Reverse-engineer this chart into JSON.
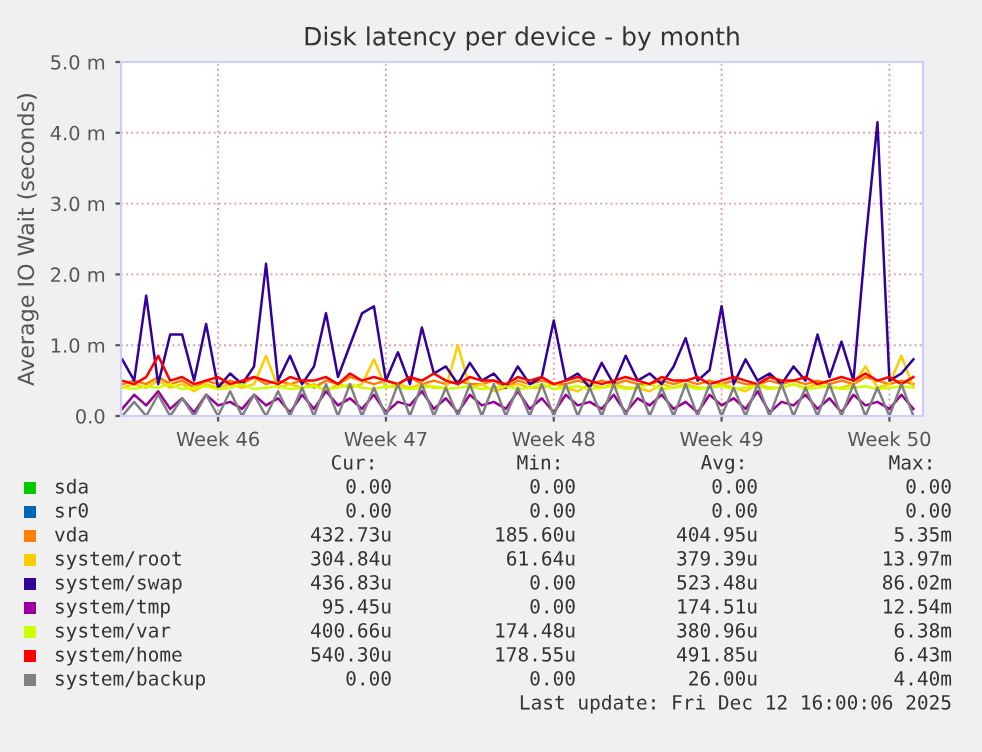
{
  "chart_data": {
    "type": "line",
    "title": "Disk latency per device - by month",
    "ylabel": "Average IO Wait (seconds)",
    "categories": [
      null,
      null,
      null,
      null,
      null,
      null,
      null,
      null,
      "Week 46",
      null,
      null,
      null,
      null,
      null,
      null,
      null,
      null,
      null,
      null,
      null,
      null,
      null,
      "Week 47",
      null,
      null,
      null,
      null,
      null,
      null,
      null,
      null,
      null,
      null,
      null,
      null,
      null,
      "Week 48",
      null,
      null,
      null,
      null,
      null,
      null,
      null,
      null,
      null,
      null,
      null,
      null,
      null,
      "Week 49",
      null,
      null,
      null,
      null,
      null,
      null,
      null,
      null,
      null,
      null,
      null,
      null,
      null,
      "Week 50",
      null,
      null
    ],
    "ylim": [
      0,
      5
    ],
    "yticks": [
      {
        "value": 0,
        "label": "0.0"
      },
      {
        "value": 1,
        "label": "1.0 m"
      },
      {
        "value": 2,
        "label": "2.0 m"
      },
      {
        "value": 3,
        "label": "3.0 m"
      },
      {
        "value": 4,
        "label": "4.0 m"
      },
      {
        "value": 5,
        "label": "5.0 m"
      }
    ],
    "grid": true,
    "legend": "bottom",
    "marker": "none",
    "line_style": "solid",
    "series": [
      {
        "name": "sda",
        "color": "#00cc00",
        "values": [
          null,
          null,
          null,
          null,
          null,
          null,
          null,
          null,
          null,
          null,
          null,
          null,
          null,
          null,
          null,
          null,
          null,
          null,
          null,
          null,
          null,
          null,
          null,
          null,
          null,
          null,
          null,
          null,
          null,
          null,
          null,
          null,
          null,
          null,
          null,
          null,
          null,
          null,
          null,
          null,
          null,
          null,
          null,
          null,
          null,
          null,
          null,
          null,
          null,
          null,
          null,
          null,
          null,
          null,
          null,
          null,
          null,
          null,
          null,
          null,
          null,
          null,
          null,
          null,
          null,
          null,
          null
        ]
      },
      {
        "name": "sr0",
        "color": "#0066b3",
        "values": [
          null,
          null,
          null,
          null,
          null,
          null,
          null,
          null,
          null,
          null,
          null,
          null,
          null,
          null,
          null,
          null,
          null,
          null,
          null,
          null,
          null,
          null,
          null,
          null,
          null,
          null,
          null,
          null,
          null,
          null,
          null,
          null,
          null,
          null,
          null,
          null,
          null,
          null,
          null,
          null,
          null,
          null,
          null,
          null,
          null,
          null,
          null,
          null,
          null,
          null,
          null,
          null,
          null,
          null,
          null,
          null,
          null,
          null,
          null,
          null,
          null,
          null,
          null,
          null,
          null,
          null,
          null
        ]
      },
      {
        "name": "vda",
        "color": "#ff8000",
        "values": [
          0.45,
          0.5,
          0.45,
          0.55,
          0.45,
          0.5,
          0.4,
          0.5,
          0.45,
          0.5,
          0.45,
          0.55,
          0.45,
          0.5,
          0.45,
          0.5,
          0.4,
          0.5,
          0.45,
          0.55,
          0.5,
          0.45,
          0.5,
          0.45,
          0.55,
          0.45,
          0.5,
          0.45,
          0.5,
          0.45,
          0.45,
          0.5,
          0.4,
          0.5,
          0.45,
          0.5,
          0.45,
          0.45,
          0.5,
          0.45,
          0.5,
          0.45,
          0.5,
          0.45,
          0.45,
          0.5,
          0.45,
          0.5,
          0.45,
          0.5,
          0.45,
          0.5,
          0.45,
          0.45,
          0.5,
          0.45,
          0.5,
          0.45,
          0.5,
          0.45,
          0.5,
          0.45,
          0.55,
          0.5,
          0.45,
          0.5,
          0.45
        ]
      },
      {
        "name": "system/root",
        "color": "#ffcc00",
        "values": [
          0.4,
          0.45,
          0.4,
          0.5,
          0.4,
          0.45,
          0.35,
          0.45,
          0.4,
          0.45,
          0.4,
          0.45,
          0.85,
          0.4,
          0.45,
          0.4,
          0.45,
          0.35,
          0.45,
          0.4,
          0.45,
          0.8,
          0.4,
          0.45,
          0.4,
          0.45,
          0.4,
          0.4,
          1.0,
          0.4,
          0.45,
          0.35,
          0.4,
          0.45,
          0.4,
          0.4,
          0.45,
          0.4,
          0.35,
          0.45,
          0.4,
          0.45,
          0.4,
          0.4,
          0.35,
          0.45,
          0.4,
          0.45,
          0.4,
          0.4,
          0.45,
          0.4,
          0.35,
          0.45,
          0.4,
          0.4,
          0.45,
          0.4,
          0.45,
          0.4,
          0.4,
          0.45,
          0.7,
          0.4,
          0.45,
          0.85,
          0.4
        ]
      },
      {
        "name": "system/swap",
        "color": "#330099",
        "values": [
          0.8,
          0.5,
          1.7,
          0.45,
          1.15,
          1.15,
          0.5,
          1.3,
          0.4,
          0.6,
          0.45,
          0.7,
          2.15,
          0.5,
          0.85,
          0.45,
          0.7,
          1.45,
          0.55,
          1.0,
          1.45,
          1.55,
          0.5,
          0.9,
          0.45,
          1.25,
          0.6,
          0.7,
          0.45,
          0.75,
          0.5,
          0.6,
          0.4,
          0.7,
          0.45,
          0.55,
          1.35,
          0.5,
          0.6,
          0.4,
          0.75,
          0.45,
          0.85,
          0.5,
          0.6,
          0.45,
          0.7,
          1.1,
          0.5,
          0.65,
          1.55,
          0.45,
          0.8,
          0.5,
          0.6,
          0.45,
          0.7,
          0.5,
          1.15,
          0.55,
          1.05,
          0.5,
          2.45,
          4.15,
          0.5,
          0.6,
          0.8
        ]
      },
      {
        "name": "system/tmp",
        "color": "#990099",
        "values": [
          0.1,
          0.3,
          0.15,
          0.35,
          0.1,
          0.25,
          0.05,
          0.3,
          0.15,
          0.2,
          0.1,
          0.3,
          0.15,
          0.25,
          0.05,
          0.3,
          0.1,
          0.35,
          0.15,
          0.25,
          0.1,
          0.3,
          0.05,
          0.2,
          0.15,
          0.35,
          0.1,
          0.25,
          0.05,
          0.3,
          0.15,
          0.2,
          0.1,
          0.35,
          0.1,
          0.25,
          0.05,
          0.3,
          0.15,
          0.2,
          0.1,
          0.3,
          0.05,
          0.25,
          0.15,
          0.3,
          0.1,
          0.2,
          0.05,
          0.3,
          0.15,
          0.25,
          0.1,
          0.35,
          0.05,
          0.2,
          0.15,
          0.3,
          0.1,
          0.25,
          0.05,
          0.3,
          0.15,
          0.2,
          0.1,
          0.3,
          0.1
        ]
      },
      {
        "name": "system/var",
        "color": "#ccff00",
        "values": [
          0.4,
          0.38,
          0.42,
          0.4,
          0.45,
          0.38,
          0.4,
          0.42,
          0.38,
          0.4,
          0.45,
          0.38,
          0.4,
          0.42,
          0.38,
          0.4,
          0.42,
          0.38,
          0.4,
          0.45,
          0.4,
          0.38,
          0.42,
          0.4,
          0.38,
          0.4,
          0.42,
          0.38,
          0.4,
          0.42,
          0.38,
          0.4,
          0.42,
          0.38,
          0.4,
          0.45,
          0.38,
          0.4,
          0.42,
          0.38,
          0.4,
          0.42,
          0.38,
          0.4,
          0.45,
          0.38,
          0.4,
          0.42,
          0.38,
          0.4,
          0.42,
          0.38,
          0.4,
          0.42,
          0.38,
          0.4,
          0.45,
          0.38,
          0.4,
          0.42,
          0.38,
          0.4,
          0.42,
          0.38,
          0.4,
          0.42,
          0.4
        ]
      },
      {
        "name": "system/home",
        "color": "#ff0000",
        "values": [
          0.5,
          0.45,
          0.55,
          0.85,
          0.5,
          0.55,
          0.45,
          0.5,
          0.55,
          0.45,
          0.5,
          0.55,
          0.5,
          0.45,
          0.55,
          0.5,
          0.5,
          0.55,
          0.45,
          0.6,
          0.5,
          0.55,
          0.5,
          0.45,
          0.55,
          0.5,
          0.6,
          0.5,
          0.45,
          0.55,
          0.5,
          0.5,
          0.45,
          0.55,
          0.5,
          0.55,
          0.45,
          0.5,
          0.55,
          0.5,
          0.45,
          0.5,
          0.55,
          0.5,
          0.45,
          0.55,
          0.5,
          0.5,
          0.55,
          0.45,
          0.5,
          0.55,
          0.5,
          0.45,
          0.55,
          0.5,
          0.5,
          0.55,
          0.45,
          0.5,
          0.55,
          0.5,
          0.6,
          0.5,
          0.55,
          0.45,
          0.55
        ]
      },
      {
        "name": "system/backup",
        "color": "#808080",
        "values": [
          0,
          0.2,
          0,
          0.3,
          0,
          0.25,
          0,
          0.3,
          0,
          0.35,
          0,
          0.3,
          0,
          0.35,
          0,
          0.4,
          0,
          0.45,
          0,
          0.45,
          0,
          0.4,
          0,
          0.45,
          0,
          0.45,
          0,
          0.4,
          0,
          0.45,
          0,
          0.45,
          0,
          0.4,
          0,
          0.45,
          0,
          0.45,
          0,
          0.4,
          0,
          0.45,
          0,
          0.45,
          0,
          0.4,
          0,
          0.45,
          0,
          0.45,
          0,
          0.4,
          0,
          0.45,
          0,
          0.45,
          0,
          0.4,
          0,
          0.45,
          0,
          0.45,
          0,
          0.4,
          0,
          0.45,
          0
        ]
      }
    ],
    "annotations": [
      "Cur:",
      "Min:",
      "Avg:",
      "Max:",
      "0.00",
      "0.00",
      "0.00",
      "0.00",
      "0.00",
      "0.00",
      "0.00",
      "0.00",
      "432.73u",
      "185.60u",
      "404.95u",
      "5.35m",
      "304.84u",
      "61.64u",
      "379.39u",
      "13.97m",
      "436.83u",
      "0.00",
      "523.48u",
      "86.02m",
      "95.45u",
      "0.00",
      "174.51u",
      "12.54m",
      "400.66u",
      "174.48u",
      "380.96u",
      "6.38m",
      "540.30u",
      "178.55u",
      "491.85u",
      "6.43m",
      "0.00",
      "0.00",
      "26.00u",
      "4.40m",
      "Last update: Fri Dec 12 16:00:06 2025"
    ]
  }
}
